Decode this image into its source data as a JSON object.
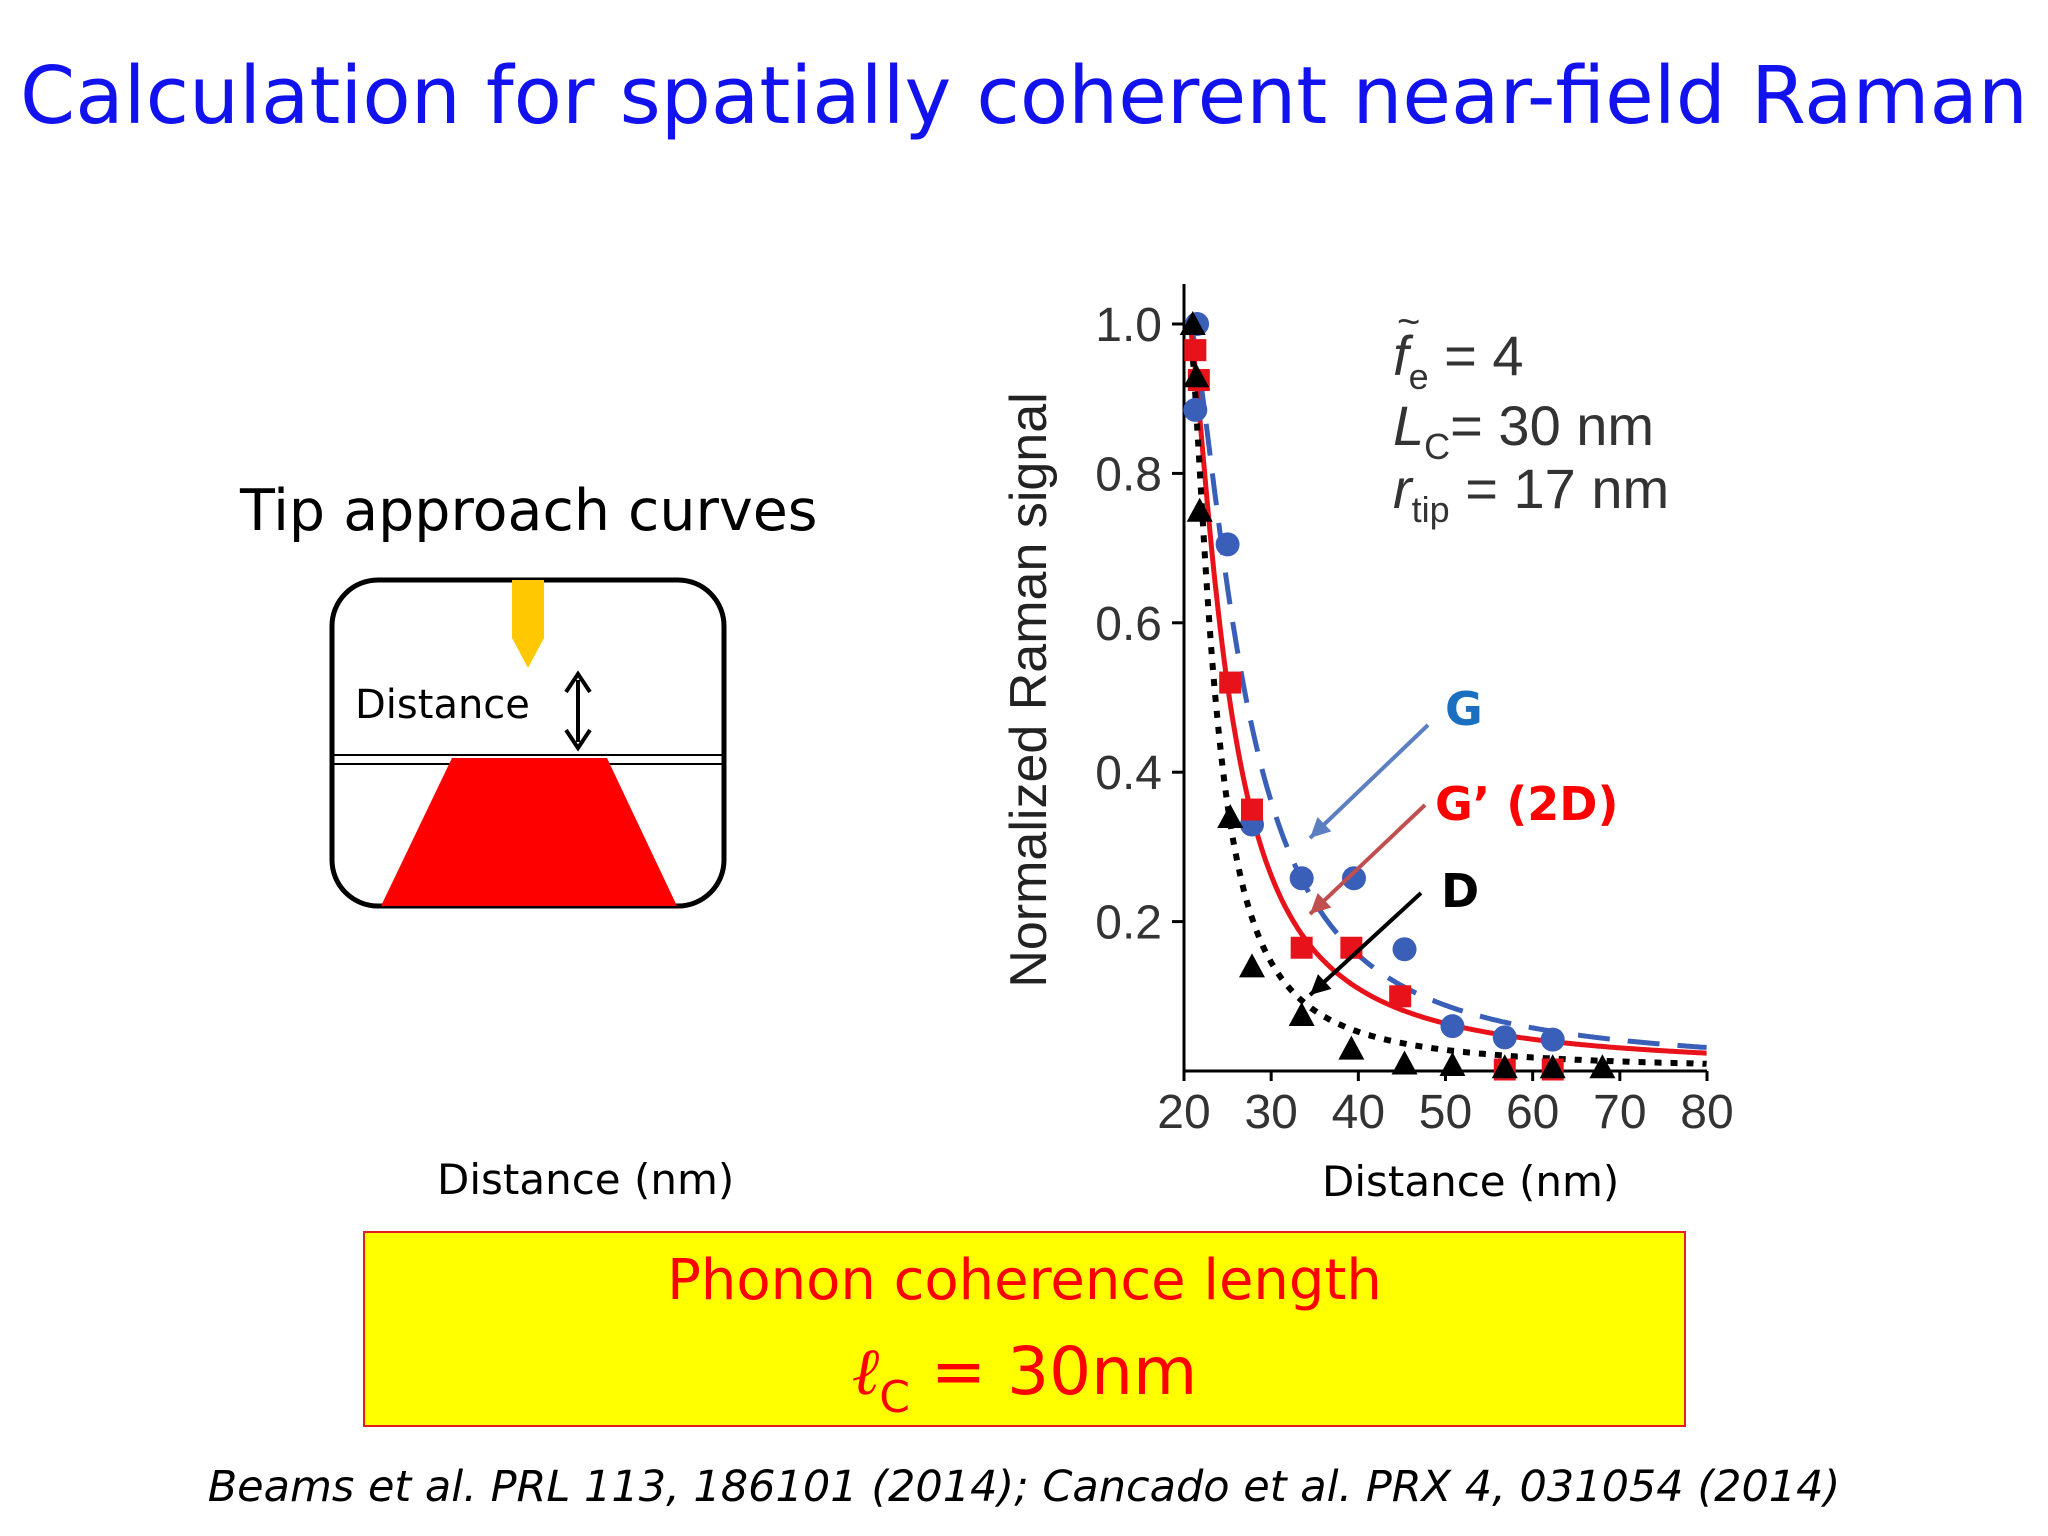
{
  "slide": {
    "title": "Calculation for spatially coherent near-field Raman",
    "diagram_label": "Tip approach curves",
    "diagram_distance_label": "Distance",
    "left_axis_caption": "Distance (nm)",
    "right_axis_caption": "Distance (nm)",
    "highlight": {
      "line1": "Phonon coherence length",
      "symbol": "ℓ",
      "subscript": "C",
      "value": " = 30nm"
    },
    "reference": "Beams et al. PRL 113, 186101 (2014); Cancado et al. PRX 4, 031054 (2014)"
  },
  "colors": {
    "title": "#1212ee",
    "tip": "#ffc800",
    "sample": "#ff0000",
    "series_G": "#3a5fb8",
    "series_2D": "#e8121a",
    "series_D": "#000000",
    "label_G": "#1a6fc0",
    "label_2D": "#ff0000",
    "highlight_bg": "#ffff00"
  },
  "chart_data": {
    "type": "scatter",
    "ylabel": "Normalized Raman signal",
    "xlabel": "",
    "xlim": [
      20,
      80
    ],
    "ylim": [
      0,
      1.05
    ],
    "x_ticks": [
      20,
      30,
      40,
      50,
      60,
      70,
      80
    ],
    "y_ticks": [
      0.2,
      0.4,
      0.6,
      0.8,
      1.0
    ],
    "y_tick_labels": [
      "0.2",
      "0.4",
      "0.6",
      "0.8",
      "1.0"
    ],
    "x_tick_labels": [
      "20",
      "30",
      "40",
      "50",
      "60",
      "70",
      "80"
    ],
    "params": {
      "fe_symbol": "f",
      "fe_sub": "e",
      "fe_value": " = 4",
      "lc_symbol": "L",
      "lc_sub": "C",
      "lc_value": "= 30 nm",
      "rtip_symbol": "r",
      "rtip_sub": "tip",
      "rtip_value": " = 17 nm"
    },
    "series": [
      {
        "name": "G",
        "marker": "circle",
        "line": "dashed",
        "color": "#3a5fb8",
        "points": [
          [
            21.5,
            1.0
          ],
          [
            21.3,
            0.885
          ],
          [
            25,
            0.705
          ],
          [
            27.8,
            0.33
          ],
          [
            33.5,
            0.258
          ],
          [
            39.5,
            0.258
          ],
          [
            45.3,
            0.163
          ],
          [
            50.8,
            0.06
          ],
          [
            56.8,
            0.045
          ],
          [
            62.3,
            0.042
          ]
        ]
      },
      {
        "name": "G’ (2D)",
        "marker": "square",
        "line": "solid",
        "color": "#e8121a",
        "points": [
          [
            21.3,
            0.965
          ],
          [
            21.7,
            0.925
          ],
          [
            25.3,
            0.52
          ],
          [
            27.8,
            0.35
          ],
          [
            33.5,
            0.165
          ],
          [
            39.2,
            0.165
          ],
          [
            44.8,
            0.1
          ],
          [
            56.8,
            0.002
          ],
          [
            62.3,
            0.002
          ]
        ]
      },
      {
        "name": "D",
        "marker": "triangle",
        "line": "dotted",
        "color": "#000000",
        "points": [
          [
            21.0,
            1.0
          ],
          [
            21.4,
            0.93
          ],
          [
            21.8,
            0.75
          ],
          [
            25.3,
            0.34
          ],
          [
            27.8,
            0.14
          ],
          [
            33.5,
            0.075
          ],
          [
            39.2,
            0.03
          ],
          [
            45.3,
            0.01
          ],
          [
            50.8,
            0.008
          ],
          [
            56.8,
            0.005
          ],
          [
            62.3,
            0.005
          ],
          [
            68.0,
            0.005
          ]
        ]
      }
    ],
    "curves": [
      {
        "name": "G",
        "a": 0.9,
        "b": 0.16,
        "c": 0.0
      },
      {
        "name": "G’ (2D)",
        "a": 0.9,
        "b": 0.2,
        "c": 0.0
      },
      {
        "name": "D",
        "a": 0.9,
        "b": 0.28,
        "c": 0.0
      }
    ],
    "annotations": [
      "G",
      "G’ (2D)",
      "D"
    ]
  }
}
